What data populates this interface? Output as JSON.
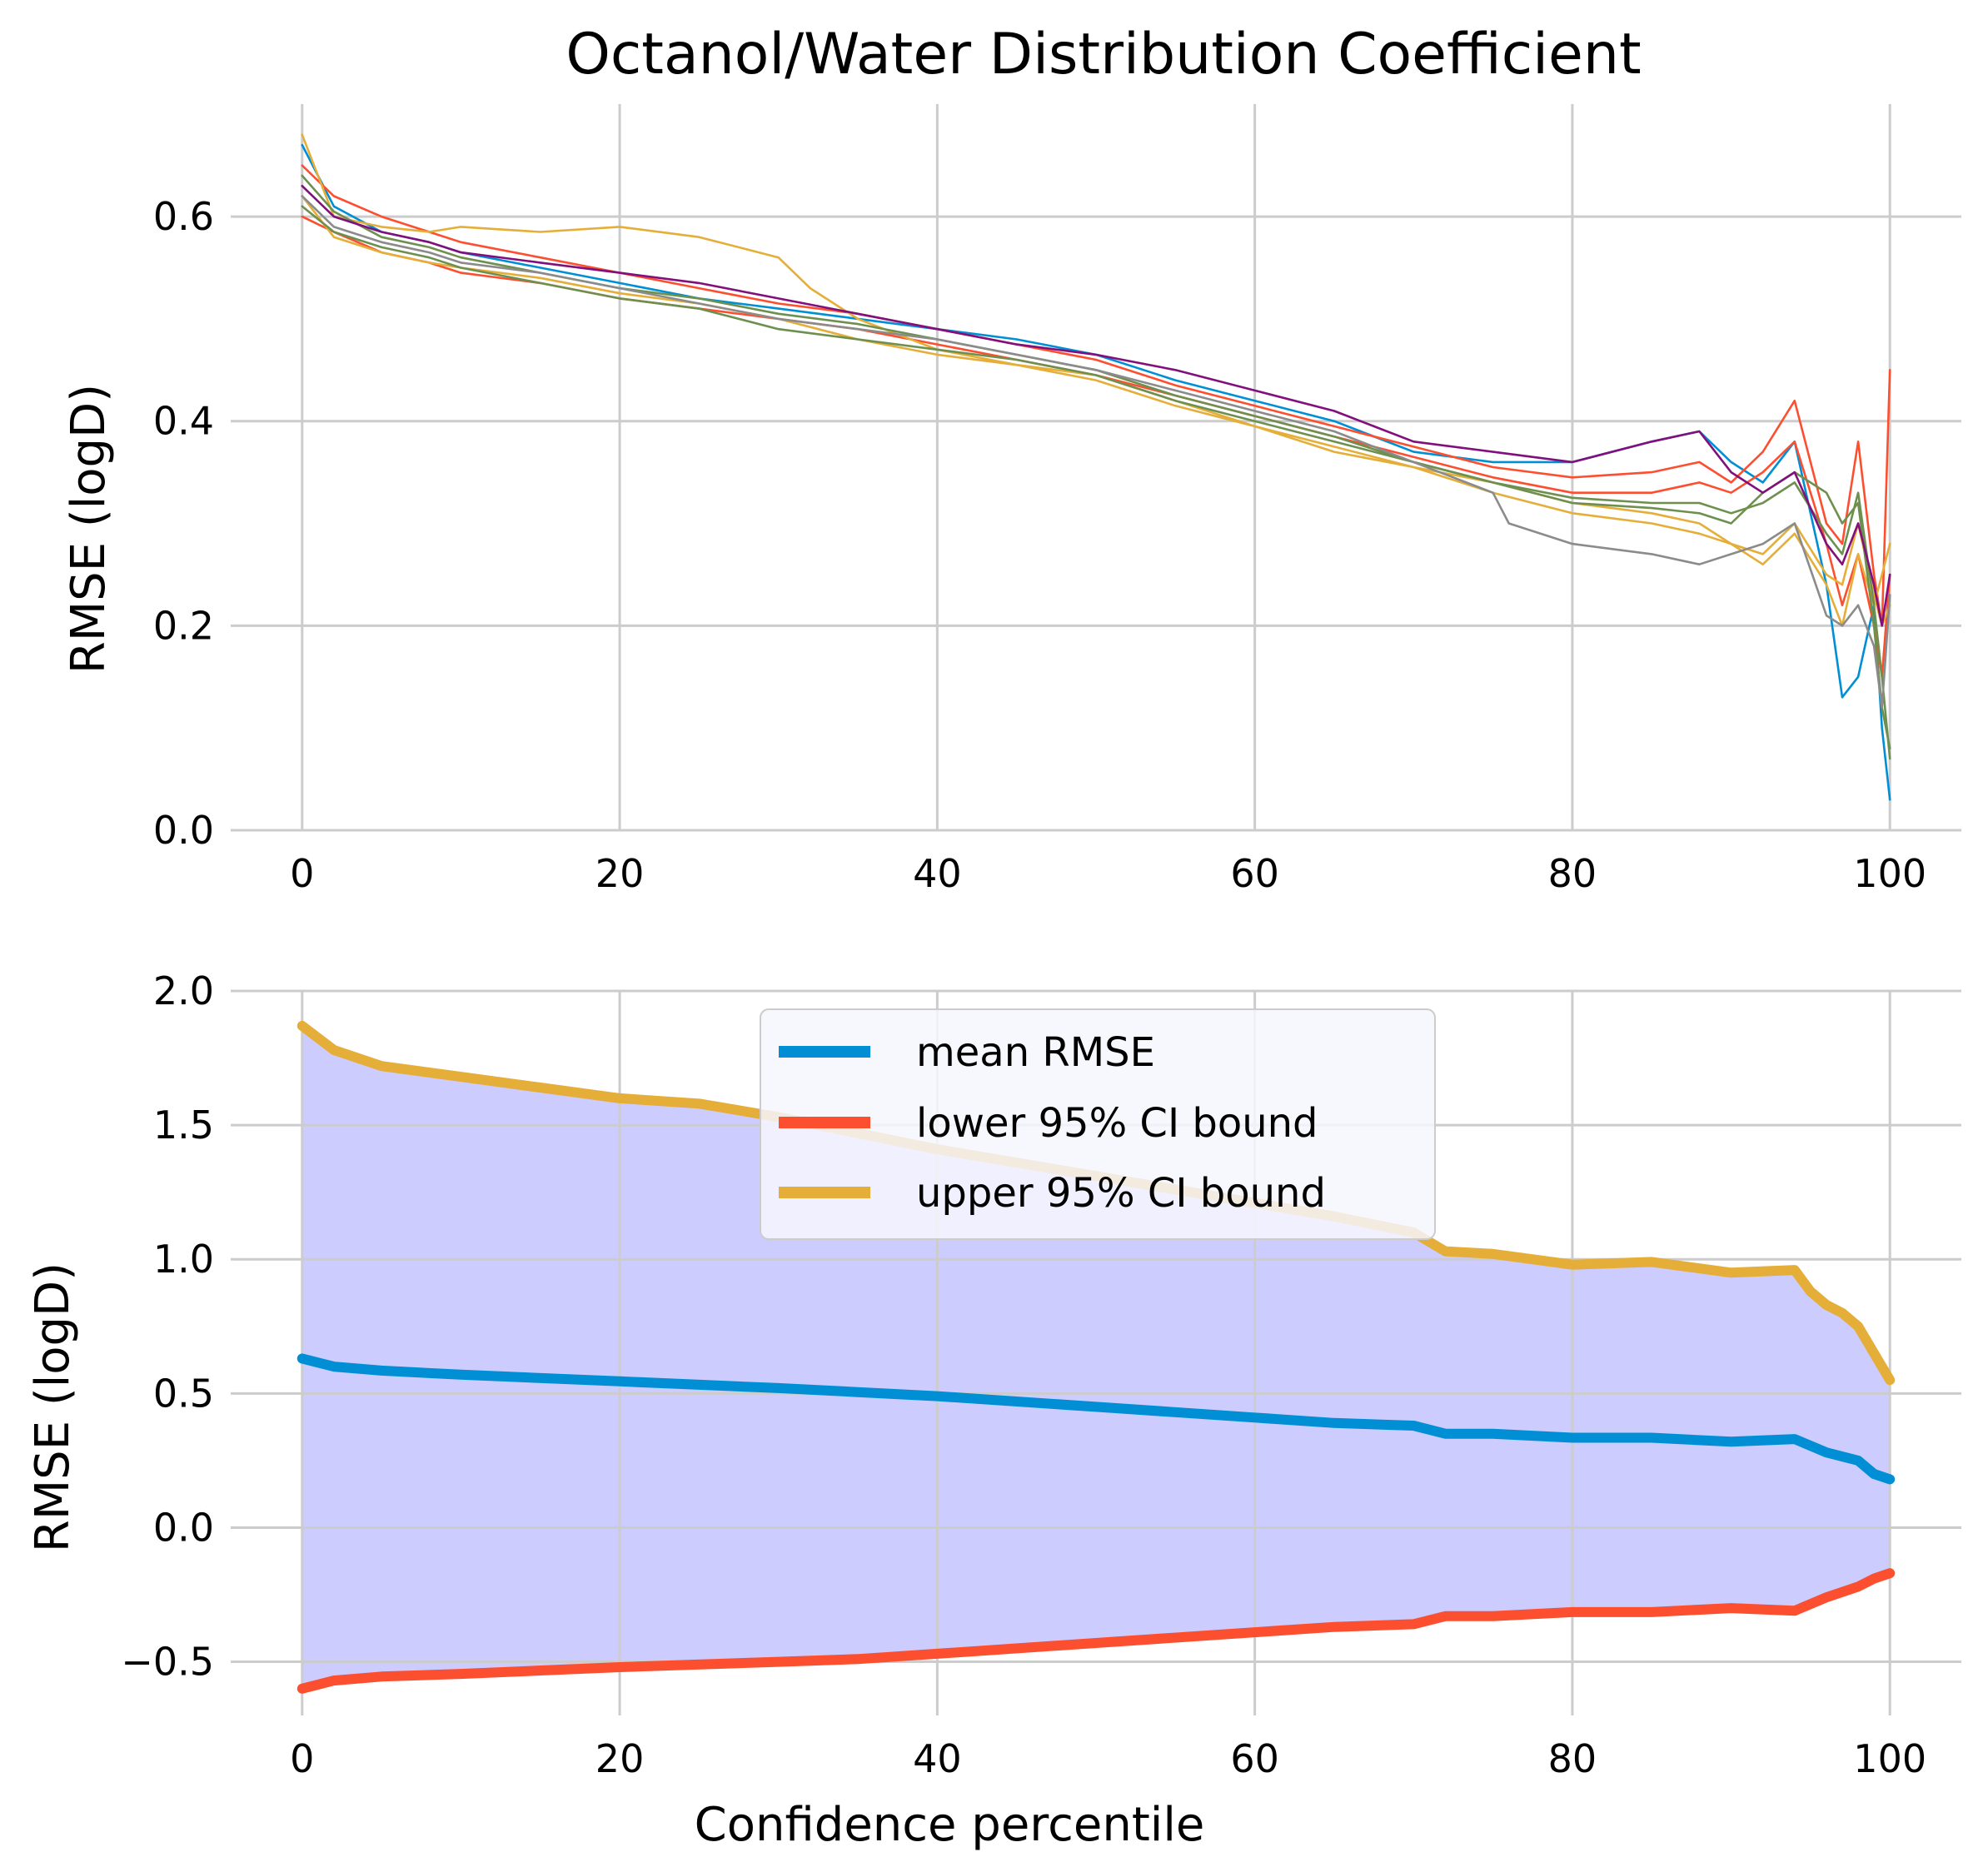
{
  "chart_data": [
    {
      "type": "line",
      "title": "Octanol/Water Distribution Coefficient",
      "xlabel": "",
      "ylabel": "RMSE (logD)",
      "xlim": [
        -4.5,
        104.5
      ],
      "ylim": [
        0.0,
        0.71
      ],
      "xticks": [
        {
          "value": 0,
          "label": "0"
        },
        {
          "value": 20,
          "label": "20"
        },
        {
          "value": 40,
          "label": "40"
        },
        {
          "value": 60,
          "label": "60"
        },
        {
          "value": 80,
          "label": "80"
        },
        {
          "value": 100,
          "label": "100"
        }
      ],
      "yticks": [
        {
          "value": 0.0,
          "label": "0.0"
        },
        {
          "value": 0.2,
          "label": "0.2"
        },
        {
          "value": 0.4,
          "label": "0.4"
        },
        {
          "value": 0.6,
          "label": "0.6"
        }
      ],
      "grid": true,
      "legend": "none",
      "series": [
        {
          "color": "#008fd5",
          "x": [
            0,
            2,
            5,
            8,
            10,
            15,
            20,
            25,
            30,
            35,
            40,
            45,
            50,
            55,
            60,
            65,
            70,
            75,
            80,
            85,
            88,
            90,
            92,
            94,
            96,
            97,
            98,
            99,
            99.5,
            100
          ],
          "y": [
            0.67,
            0.61,
            0.585,
            0.575,
            0.565,
            0.55,
            0.535,
            0.52,
            0.51,
            0.5,
            0.49,
            0.48,
            0.465,
            0.44,
            0.42,
            0.4,
            0.37,
            0.36,
            0.36,
            0.38,
            0.39,
            0.36,
            0.34,
            0.38,
            0.24,
            0.13,
            0.15,
            0.22,
            0.1,
            0.03
          ]
        },
        {
          "color": "#fc4f30",
          "x": [
            0,
            2,
            5,
            8,
            10,
            15,
            20,
            25,
            30,
            35,
            40,
            45,
            50,
            55,
            60,
            65,
            70,
            75,
            80,
            85,
            88,
            90,
            92,
            94,
            96,
            97,
            98,
            99,
            99.5,
            100
          ],
          "y": [
            0.65,
            0.62,
            0.6,
            0.585,
            0.575,
            0.56,
            0.545,
            0.53,
            0.515,
            0.505,
            0.49,
            0.475,
            0.46,
            0.435,
            0.415,
            0.395,
            0.375,
            0.355,
            0.345,
            0.35,
            0.36,
            0.34,
            0.37,
            0.42,
            0.3,
            0.28,
            0.38,
            0.25,
            0.2,
            0.45
          ]
        },
        {
          "color": "#fc4f30",
          "x": [
            0,
            2,
            5,
            8,
            10,
            15,
            20,
            25,
            30,
            35,
            40,
            45,
            50,
            55,
            60,
            65,
            70,
            75,
            80,
            85,
            88,
            90,
            92,
            94,
            96,
            97,
            98,
            99,
            99.5,
            100
          ],
          "y": [
            0.6,
            0.585,
            0.565,
            0.555,
            0.545,
            0.535,
            0.52,
            0.51,
            0.5,
            0.49,
            0.475,
            0.46,
            0.445,
            0.425,
            0.405,
            0.385,
            0.365,
            0.345,
            0.33,
            0.33,
            0.34,
            0.33,
            0.35,
            0.38,
            0.28,
            0.22,
            0.27,
            0.2,
            0.15,
            0.25
          ]
        },
        {
          "color": "#e5ae38",
          "x": [
            0,
            2,
            5,
            8,
            10,
            15,
            20,
            25,
            30,
            32,
            35,
            40,
            45,
            50,
            55,
            60,
            65,
            70,
            75,
            80,
            85,
            88,
            90,
            92,
            94,
            96,
            97,
            98,
            99,
            99.5,
            100
          ],
          "y": [
            0.68,
            0.6,
            0.59,
            0.585,
            0.59,
            0.585,
            0.59,
            0.58,
            0.56,
            0.53,
            0.5,
            0.47,
            0.455,
            0.445,
            0.42,
            0.395,
            0.37,
            0.355,
            0.33,
            0.31,
            0.3,
            0.29,
            0.28,
            0.26,
            0.29,
            0.24,
            0.2,
            0.27,
            0.22,
            0.25,
            0.28
          ]
        },
        {
          "color": "#e5ae38",
          "x": [
            0,
            2,
            5,
            8,
            10,
            15,
            20,
            25,
            30,
            35,
            40,
            45,
            50,
            55,
            60,
            65,
            70,
            75,
            80,
            85,
            88,
            90,
            92,
            94,
            96,
            97,
            98,
            99,
            99.5,
            100
          ],
          "y": [
            0.62,
            0.58,
            0.565,
            0.555,
            0.55,
            0.54,
            0.525,
            0.515,
            0.5,
            0.48,
            0.465,
            0.455,
            0.44,
            0.415,
            0.395,
            0.375,
            0.355,
            0.34,
            0.32,
            0.31,
            0.3,
            0.28,
            0.27,
            0.3,
            0.25,
            0.24,
            0.3,
            0.23,
            0.2,
            0.22
          ]
        },
        {
          "color": "#6d904f",
          "x": [
            0,
            2,
            5,
            8,
            10,
            15,
            20,
            25,
            30,
            35,
            40,
            45,
            50,
            55,
            60,
            65,
            70,
            75,
            80,
            85,
            88,
            90,
            92,
            94,
            96,
            97,
            98,
            99,
            99.5,
            100
          ],
          "y": [
            0.64,
            0.605,
            0.58,
            0.57,
            0.56,
            0.545,
            0.53,
            0.52,
            0.505,
            0.495,
            0.48,
            0.465,
            0.45,
            0.425,
            0.405,
            0.385,
            0.36,
            0.34,
            0.32,
            0.315,
            0.31,
            0.3,
            0.33,
            0.35,
            0.33,
            0.3,
            0.32,
            0.2,
            0.12,
            0.08
          ]
        },
        {
          "color": "#6d904f",
          "x": [
            0,
            2,
            5,
            8,
            10,
            15,
            20,
            25,
            30,
            35,
            40,
            45,
            50,
            55,
            60,
            65,
            70,
            75,
            80,
            85,
            88,
            90,
            92,
            94,
            96,
            97,
            98,
            99,
            99.5,
            100
          ],
          "y": [
            0.61,
            0.585,
            0.57,
            0.56,
            0.55,
            0.535,
            0.52,
            0.51,
            0.49,
            0.48,
            0.47,
            0.46,
            0.445,
            0.42,
            0.4,
            0.38,
            0.36,
            0.34,
            0.325,
            0.32,
            0.32,
            0.31,
            0.32,
            0.34,
            0.29,
            0.27,
            0.33,
            0.22,
            0.15,
            0.07
          ]
        },
        {
          "color": "#810f7c",
          "x": [
            0,
            2,
            5,
            8,
            10,
            15,
            20,
            25,
            30,
            35,
            40,
            45,
            50,
            55,
            60,
            65,
            70,
            75,
            80,
            85,
            88,
            90,
            92,
            94,
            96,
            97,
            98,
            99,
            99.5,
            100
          ],
          "y": [
            0.63,
            0.6,
            0.585,
            0.575,
            0.565,
            0.555,
            0.545,
            0.535,
            0.52,
            0.505,
            0.49,
            0.475,
            0.465,
            0.45,
            0.43,
            0.41,
            0.38,
            0.37,
            0.36,
            0.38,
            0.39,
            0.35,
            0.33,
            0.35,
            0.28,
            0.26,
            0.3,
            0.24,
            0.2,
            0.25
          ]
        },
        {
          "color": "#8b8b8b",
          "x": [
            0,
            2,
            5,
            8,
            10,
            15,
            20,
            25,
            30,
            35,
            40,
            45,
            50,
            55,
            60,
            65,
            70,
            75,
            76,
            80,
            85,
            88,
            90,
            92,
            94,
            96,
            97,
            98,
            99,
            99.5,
            100
          ],
          "y": [
            0.62,
            0.59,
            0.575,
            0.565,
            0.555,
            0.545,
            0.53,
            0.515,
            0.5,
            0.49,
            0.48,
            0.465,
            0.45,
            0.43,
            0.41,
            0.39,
            0.36,
            0.33,
            0.3,
            0.28,
            0.27,
            0.26,
            0.27,
            0.28,
            0.3,
            0.21,
            0.2,
            0.22,
            0.18,
            0.12,
            0.23
          ]
        }
      ]
    },
    {
      "type": "line",
      "title": "",
      "xlabel": "Confidence percentile",
      "ylabel": "RMSE (logD)",
      "xlim": [
        -4.5,
        104.5
      ],
      "ylim": [
        -0.7,
        2.0
      ],
      "xticks": [
        {
          "value": 0,
          "label": "0"
        },
        {
          "value": 20,
          "label": "20"
        },
        {
          "value": 40,
          "label": "40"
        },
        {
          "value": 60,
          "label": "60"
        },
        {
          "value": 80,
          "label": "80"
        },
        {
          "value": 100,
          "label": "100"
        }
      ],
      "yticks": [
        {
          "value": -0.5,
          "label": "−0.5"
        },
        {
          "value": 0.0,
          "label": "0.0"
        },
        {
          "value": 0.5,
          "label": "0.5"
        },
        {
          "value": 1.0,
          "label": "1.0"
        },
        {
          "value": 1.5,
          "label": "1.5"
        },
        {
          "value": 2.0,
          "label": "2.0"
        }
      ],
      "grid": true,
      "legend": "top-center",
      "fill": {
        "color": "#ccccff",
        "between": [
          "upper 95% CI bound",
          "lower 95% CI bound"
        ]
      },
      "series": [
        {
          "name": "mean RMSE",
          "color": "#008fd5",
          "x": [
            0,
            2,
            5,
            10,
            20,
            30,
            35,
            40,
            50,
            60,
            65,
            70,
            72,
            75,
            80,
            85,
            90,
            94,
            96,
            98,
            99,
            100
          ],
          "y": [
            0.63,
            0.6,
            0.585,
            0.57,
            0.545,
            0.52,
            0.505,
            0.49,
            0.45,
            0.41,
            0.39,
            0.38,
            0.35,
            0.35,
            0.335,
            0.335,
            0.32,
            0.33,
            0.28,
            0.25,
            0.2,
            0.18
          ]
        },
        {
          "name": "lower 95% CI bound",
          "color": "#fc4f30",
          "x": [
            0,
            2,
            5,
            10,
            20,
            30,
            35,
            40,
            50,
            60,
            65,
            70,
            72,
            75,
            80,
            85,
            90,
            94,
            96,
            98,
            99,
            100
          ],
          "y": [
            -0.6,
            -0.57,
            -0.555,
            -0.545,
            -0.52,
            -0.5,
            -0.49,
            -0.47,
            -0.43,
            -0.39,
            -0.37,
            -0.36,
            -0.33,
            -0.33,
            -0.315,
            -0.315,
            -0.3,
            -0.31,
            -0.26,
            -0.22,
            -0.19,
            -0.17
          ]
        },
        {
          "name": "upper 95% CI bound",
          "color": "#e5ae38",
          "x": [
            0,
            2,
            5,
            10,
            15,
            20,
            25,
            30,
            35,
            40,
            45,
            50,
            55,
            60,
            65,
            70,
            72,
            75,
            80,
            85,
            90,
            94,
            95,
            96,
            97,
            98,
            99,
            100
          ],
          "y": [
            1.87,
            1.78,
            1.72,
            1.68,
            1.64,
            1.6,
            1.58,
            1.53,
            1.47,
            1.41,
            1.36,
            1.31,
            1.26,
            1.21,
            1.16,
            1.1,
            1.03,
            1.02,
            0.98,
            0.99,
            0.95,
            0.96,
            0.88,
            0.83,
            0.8,
            0.75,
            0.65,
            0.55
          ]
        }
      ]
    }
  ]
}
